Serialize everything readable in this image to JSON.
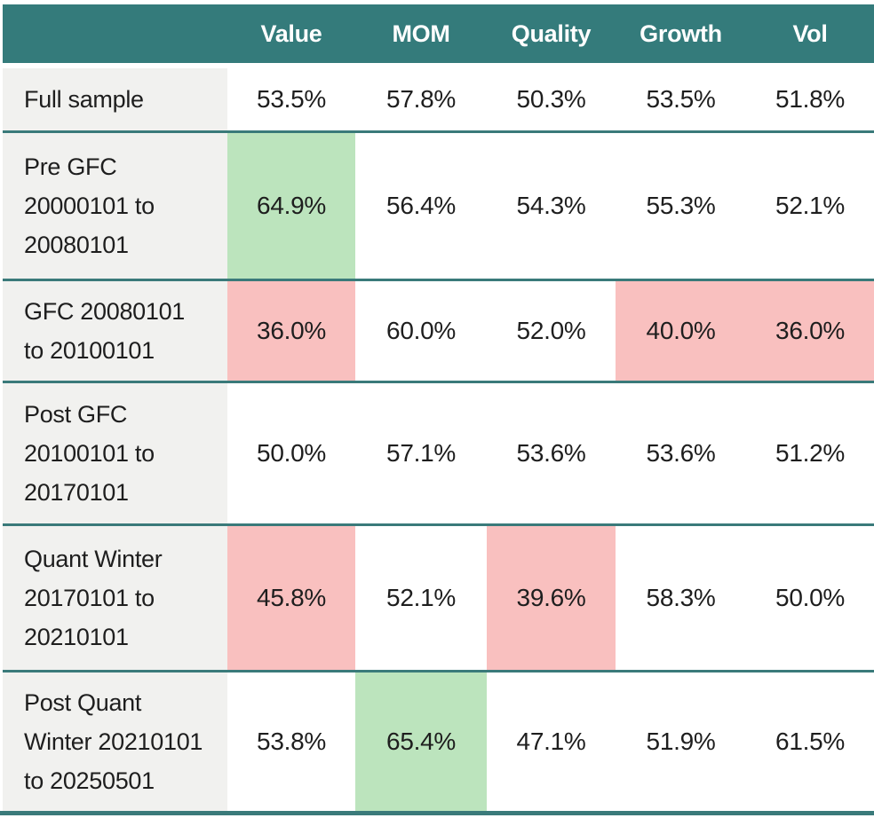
{
  "chart_data": {
    "type": "table",
    "title": "",
    "columns": [
      "Value",
      "MOM",
      "Quality",
      "Growth",
      "Vol"
    ],
    "rows": [
      {
        "label": "Full sample",
        "values": [
          53.5,
          57.8,
          50.3,
          53.5,
          51.8
        ],
        "display": [
          "53.5%",
          "57.8%",
          "50.3%",
          "53.5%",
          "51.8%"
        ],
        "highlights": [
          "none",
          "none",
          "none",
          "none",
          "none"
        ]
      },
      {
        "label": "Pre GFC\n20000101 to\n20080101",
        "values": [
          64.9,
          56.4,
          54.3,
          55.3,
          52.1
        ],
        "display": [
          "64.9%",
          "56.4%",
          "54.3%",
          "55.3%",
          "52.1%"
        ],
        "highlights": [
          "green",
          "none",
          "none",
          "none",
          "none"
        ]
      },
      {
        "label": "GFC 20080101\nto 20100101",
        "values": [
          36.0,
          60.0,
          52.0,
          40.0,
          36.0
        ],
        "display": [
          "36.0%",
          "60.0%",
          "52.0%",
          "40.0%",
          "36.0%"
        ],
        "highlights": [
          "red",
          "none",
          "none",
          "red",
          "red"
        ]
      },
      {
        "label": "Post GFC\n20100101 to\n20170101",
        "values": [
          50.0,
          57.1,
          53.6,
          53.6,
          51.2
        ],
        "display": [
          "50.0%",
          "57.1%",
          "53.6%",
          "53.6%",
          "51.2%"
        ],
        "highlights": [
          "none",
          "none",
          "none",
          "none",
          "none"
        ]
      },
      {
        "label": "Quant Winter\n20170101 to\n20210101",
        "values": [
          45.8,
          52.1,
          39.6,
          58.3,
          50.0
        ],
        "display": [
          "45.8%",
          "52.1%",
          "39.6%",
          "58.3%",
          "50.0%"
        ],
        "highlights": [
          "red",
          "none",
          "red",
          "none",
          "none"
        ]
      },
      {
        "label": "Post Quant\nWinter 20210101\nto 20250501",
        "values": [
          53.8,
          65.4,
          47.1,
          51.9,
          61.5
        ],
        "display": [
          "53.8%",
          "65.4%",
          "47.1%",
          "51.9%",
          "61.5%"
        ],
        "highlights": [
          "none",
          "green",
          "none",
          "none",
          "none"
        ]
      }
    ],
    "colors": {
      "header_bg": "#347b7b",
      "header_text": "#ffffff",
      "divider": "#3a7a7a",
      "positive_highlight": "#bce4bd",
      "negative_highlight": "#f9c0bf",
      "label_column_bg": "#f1f1ef",
      "cell_text": "#1e1e1e"
    },
    "layout": {
      "grid": "off",
      "legend": "none"
    }
  }
}
